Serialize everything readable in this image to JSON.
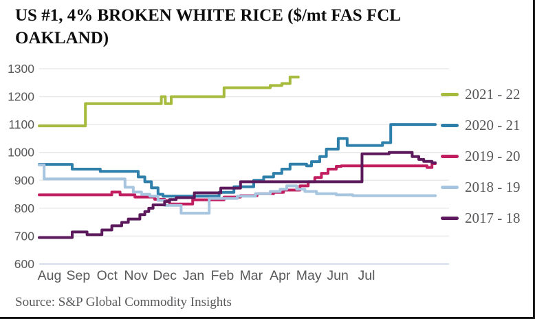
{
  "title": {
    "line1": "US #1, 4% BROKEN WHITE RICE ($/mt FAS FCL",
    "line2": "OAKLAND)",
    "full": "US #1, 4% BROKEN WHITE RICE ($/mt FAS FCL OAKLAND)"
  },
  "source": "Source: S&P Global Commodity Insights",
  "colors": {
    "text_gray": "#58595b",
    "gridline": "#eaeaea",
    "baseline_600": "#c3d2e7",
    "border": "#141414"
  },
  "chart_data": {
    "type": "line",
    "title": "US #1, 4% BROKEN WHITE RICE ($/mt FAS FCL OAKLAND)",
    "unit_note": "$/mt",
    "interpolation": "step-after",
    "grid": "horizontal-only",
    "legend_position": "right",
    "ylim": [
      600,
      1300
    ],
    "yticks": [
      600,
      700,
      800,
      900,
      1000,
      1100,
      1200,
      1300
    ],
    "x_months": [
      "Aug",
      "Sep",
      "Oct",
      "Nov",
      "Dec",
      "Jan",
      "Feb",
      "Mar",
      "Apr",
      "May",
      "Jun",
      "Jul"
    ],
    "x_unit": "months (Aug=0 .. Jul end=12)",
    "series": [
      {
        "name": "2021 - 22",
        "color": "#a6ba3d",
        "points": [
          [
            0,
            1095
          ],
          [
            1.4,
            1175
          ],
          [
            3.7,
            1200
          ],
          [
            3.82,
            1175
          ],
          [
            4.0,
            1200
          ],
          [
            5.6,
            1232
          ],
          [
            7.0,
            1240
          ],
          [
            7.35,
            1247
          ],
          [
            7.6,
            1270
          ],
          [
            7.85,
            1270
          ]
        ]
      },
      {
        "name": "2020 - 21",
        "color": "#2f7fab",
        "points": [
          [
            0,
            957
          ],
          [
            1.0,
            940
          ],
          [
            1.85,
            932
          ],
          [
            3.0,
            912
          ],
          [
            3.2,
            895
          ],
          [
            3.4,
            873
          ],
          [
            3.6,
            850
          ],
          [
            3.75,
            843
          ],
          [
            5.45,
            857
          ],
          [
            5.9,
            877
          ],
          [
            6.5,
            900
          ],
          [
            6.8,
            912
          ],
          [
            7.1,
            925
          ],
          [
            7.35,
            940
          ],
          [
            7.6,
            958
          ],
          [
            8.1,
            952
          ],
          [
            8.25,
            967
          ],
          [
            8.5,
            985
          ],
          [
            8.7,
            1012
          ],
          [
            9.06,
            1050
          ],
          [
            9.33,
            1025
          ],
          [
            10.4,
            1035
          ],
          [
            10.65,
            1100
          ],
          [
            12,
            1100
          ]
        ]
      },
      {
        "name": "2019 - 20",
        "color": "#c11f60",
        "points": [
          [
            0,
            848
          ],
          [
            2.2,
            858
          ],
          [
            2.45,
            848
          ],
          [
            2.9,
            840
          ],
          [
            3.5,
            832
          ],
          [
            3.8,
            827
          ],
          [
            3.95,
            815
          ],
          [
            4.65,
            830
          ],
          [
            5.6,
            840
          ],
          [
            6.1,
            845
          ],
          [
            6.6,
            852
          ],
          [
            7.1,
            857
          ],
          [
            7.4,
            865
          ],
          [
            7.9,
            880
          ],
          [
            8.15,
            895
          ],
          [
            8.35,
            910
          ],
          [
            8.55,
            925
          ],
          [
            8.75,
            940
          ],
          [
            9.0,
            950
          ],
          [
            9.15,
            952
          ],
          [
            11.75,
            946
          ],
          [
            11.9,
            960
          ],
          [
            12,
            960
          ]
        ]
      },
      {
        "name": "2018 - 19",
        "color": "#a8c5e0",
        "points": [
          [
            0,
            955
          ],
          [
            0.15,
            905
          ],
          [
            2.6,
            875
          ],
          [
            2.85,
            858
          ],
          [
            3.1,
            850
          ],
          [
            3.35,
            843
          ],
          [
            3.6,
            828
          ],
          [
            3.8,
            810
          ],
          [
            4.3,
            782
          ],
          [
            5.15,
            835
          ],
          [
            6.0,
            843
          ],
          [
            6.55,
            852
          ],
          [
            7.0,
            860
          ],
          [
            7.3,
            868
          ],
          [
            7.5,
            880
          ],
          [
            7.8,
            868
          ],
          [
            8.05,
            860
          ],
          [
            8.4,
            852
          ],
          [
            9.0,
            848
          ],
          [
            9.5,
            845
          ],
          [
            12,
            845
          ]
        ]
      },
      {
        "name": "2017 - 18",
        "color": "#5c1a5c",
        "points": [
          [
            0,
            695
          ],
          [
            1.0,
            715
          ],
          [
            1.45,
            705
          ],
          [
            1.9,
            722
          ],
          [
            2.2,
            737
          ],
          [
            2.5,
            749
          ],
          [
            2.7,
            761
          ],
          [
            3.05,
            777
          ],
          [
            3.2,
            788
          ],
          [
            3.32,
            800
          ],
          [
            3.45,
            812
          ],
          [
            3.8,
            824
          ],
          [
            3.95,
            831
          ],
          [
            4.15,
            838
          ],
          [
            4.7,
            855
          ],
          [
            5.5,
            872
          ],
          [
            6.1,
            895
          ],
          [
            9.78,
            995
          ],
          [
            10.6,
            1000
          ],
          [
            11.3,
            985
          ],
          [
            11.5,
            975
          ],
          [
            11.65,
            968
          ],
          [
            11.9,
            963
          ],
          [
            12,
            963
          ]
        ]
      }
    ]
  }
}
